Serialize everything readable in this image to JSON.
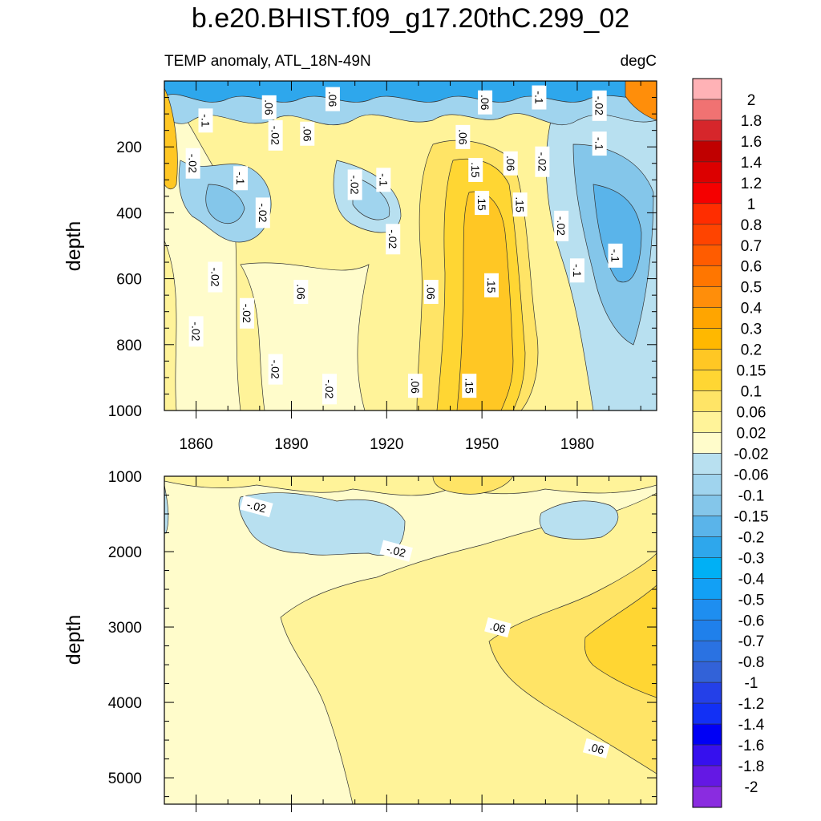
{
  "title": "b.e20.BHIST.f09_g17.20thC.299_02",
  "subtitle_left": "TEMP anomaly, ATL_18N-49N",
  "subtitle_right": "degC",
  "chart_data": [
    {
      "type": "heatmap",
      "panel": "upper",
      "xlabel": "",
      "ylabel": "depth",
      "xlim": [
        1850,
        2005
      ],
      "ylim": [
        0,
        1000
      ],
      "y_reversed": true,
      "x_ticks": [
        "1860",
        "1890",
        "1920",
        "1950",
        "1980"
      ],
      "y_ticks": [
        "200",
        "400",
        "600",
        "800",
        "1000"
      ],
      "contour_labels": [
        {
          "text": "-.1",
          "x": 1863,
          "y": 120
        },
        {
          "text": "-.02",
          "x": 1859,
          "y": 250
        },
        {
          "text": ".06",
          "x": 1883,
          "y": 80
        },
        {
          "text": "-.02",
          "x": 1885,
          "y": 165
        },
        {
          "text": ".06",
          "x": 1903,
          "y": 55
        },
        {
          "text": ".06",
          "x": 1895,
          "y": 160
        },
        {
          "text": "-.1",
          "x": 1874,
          "y": 295
        },
        {
          "text": "-.02",
          "x": 1881,
          "y": 400
        },
        {
          "text": "-.02",
          "x": 1910,
          "y": 315
        },
        {
          "text": "-.1",
          "x": 1919,
          "y": 300
        },
        {
          "text": "-.02",
          "x": 1922,
          "y": 480
        },
        {
          "text": ".06",
          "x": 1951,
          "y": 65
        },
        {
          "text": "-.1",
          "x": 1968,
          "y": 50
        },
        {
          "text": "-.02",
          "x": 1987,
          "y": 75
        },
        {
          "text": ".06",
          "x": 1944,
          "y": 170
        },
        {
          "text": ".15",
          "x": 1948,
          "y": 270
        },
        {
          "text": ".06",
          "x": 1959,
          "y": 250
        },
        {
          "text": "-.02",
          "x": 1969,
          "y": 245
        },
        {
          "text": "-.1",
          "x": 1987,
          "y": 190
        },
        {
          "text": ".15",
          "x": 1950,
          "y": 370
        },
        {
          "text": ".15",
          "x": 1962,
          "y": 375
        },
        {
          "text": "-.02",
          "x": 1975,
          "y": 440
        },
        {
          "text": "-.1",
          "x": 1992,
          "y": 530
        },
        {
          "text": "-.1",
          "x": 1980,
          "y": 575
        },
        {
          "text": "-.02",
          "x": 1866,
          "y": 595
        },
        {
          "text": ".06",
          "x": 1893,
          "y": 640
        },
        {
          "text": ".06",
          "x": 1934,
          "y": 640
        },
        {
          "text": ".15",
          "x": 1953,
          "y": 620
        },
        {
          "text": "-.02",
          "x": 1876,
          "y": 705
        },
        {
          "text": "-.02",
          "x": 1860,
          "y": 760
        },
        {
          "text": "-.02",
          "x": 1885,
          "y": 875
        },
        {
          "text": "-.02",
          "x": 1902,
          "y": 935
        },
        {
          "text": ".06",
          "x": 1929,
          "y": 925
        },
        {
          "text": ".15",
          "x": 1946,
          "y": 925
        }
      ]
    },
    {
      "type": "heatmap",
      "panel": "lower",
      "xlabel": "",
      "ylabel": "depth",
      "xlim": [
        1850,
        2005
      ],
      "ylim": [
        1000,
        5350
      ],
      "y_reversed": true,
      "y_ticks": [
        "1000",
        "2000",
        "3000",
        "4000",
        "5000"
      ],
      "contour_labels": [
        {
          "text": "-.02",
          "x": 1879,
          "y": 1400
        },
        {
          "text": "-.02",
          "x": 1923,
          "y": 1990
        },
        {
          "text": ".06",
          "x": 1955,
          "y": 3005
        },
        {
          "text": ".06",
          "x": 1986,
          "y": 4610
        }
      ]
    }
  ],
  "colorbar": {
    "labels": [
      "2",
      "1.8",
      "1.6",
      "1.4",
      "1.2",
      "1",
      "0.8",
      "0.7",
      "0.6",
      "0.5",
      "0.4",
      "0.3",
      "0.2",
      "0.15",
      "0.1",
      "0.06",
      "0.02",
      "-0.02",
      "-0.06",
      "-0.1",
      "-0.15",
      "-0.2",
      "-0.3",
      "-0.4",
      "-0.5",
      "-0.6",
      "-0.7",
      "-0.8",
      "-1",
      "-1.2",
      "-1.4",
      "-1.6",
      "-1.8",
      "-2"
    ],
    "colors": [
      "#ffb2b6",
      "#f07272",
      "#d6262b",
      "#c00000",
      "#dc0000",
      "#f50000",
      "#ff2d00",
      "#ff4400",
      "#ff5c00",
      "#ff7600",
      "#ff8e0a",
      "#ffa500",
      "#ffb800",
      "#ffc724",
      "#ffd633",
      "#ffe466",
      "#fff399",
      "#fffccb",
      "#b8e0f0",
      "#a0d4ee",
      "#84c6ea",
      "#5ab4ea",
      "#2ea7ec",
      "#00b0f5",
      "#12a0f5",
      "#1e8ef0",
      "#1f80eb",
      "#2a72e2",
      "#3262d8",
      "#2440e8",
      "#1230f5",
      "#0000f5",
      "#3610ee",
      "#6418e4",
      "#8a2ce0"
    ]
  }
}
